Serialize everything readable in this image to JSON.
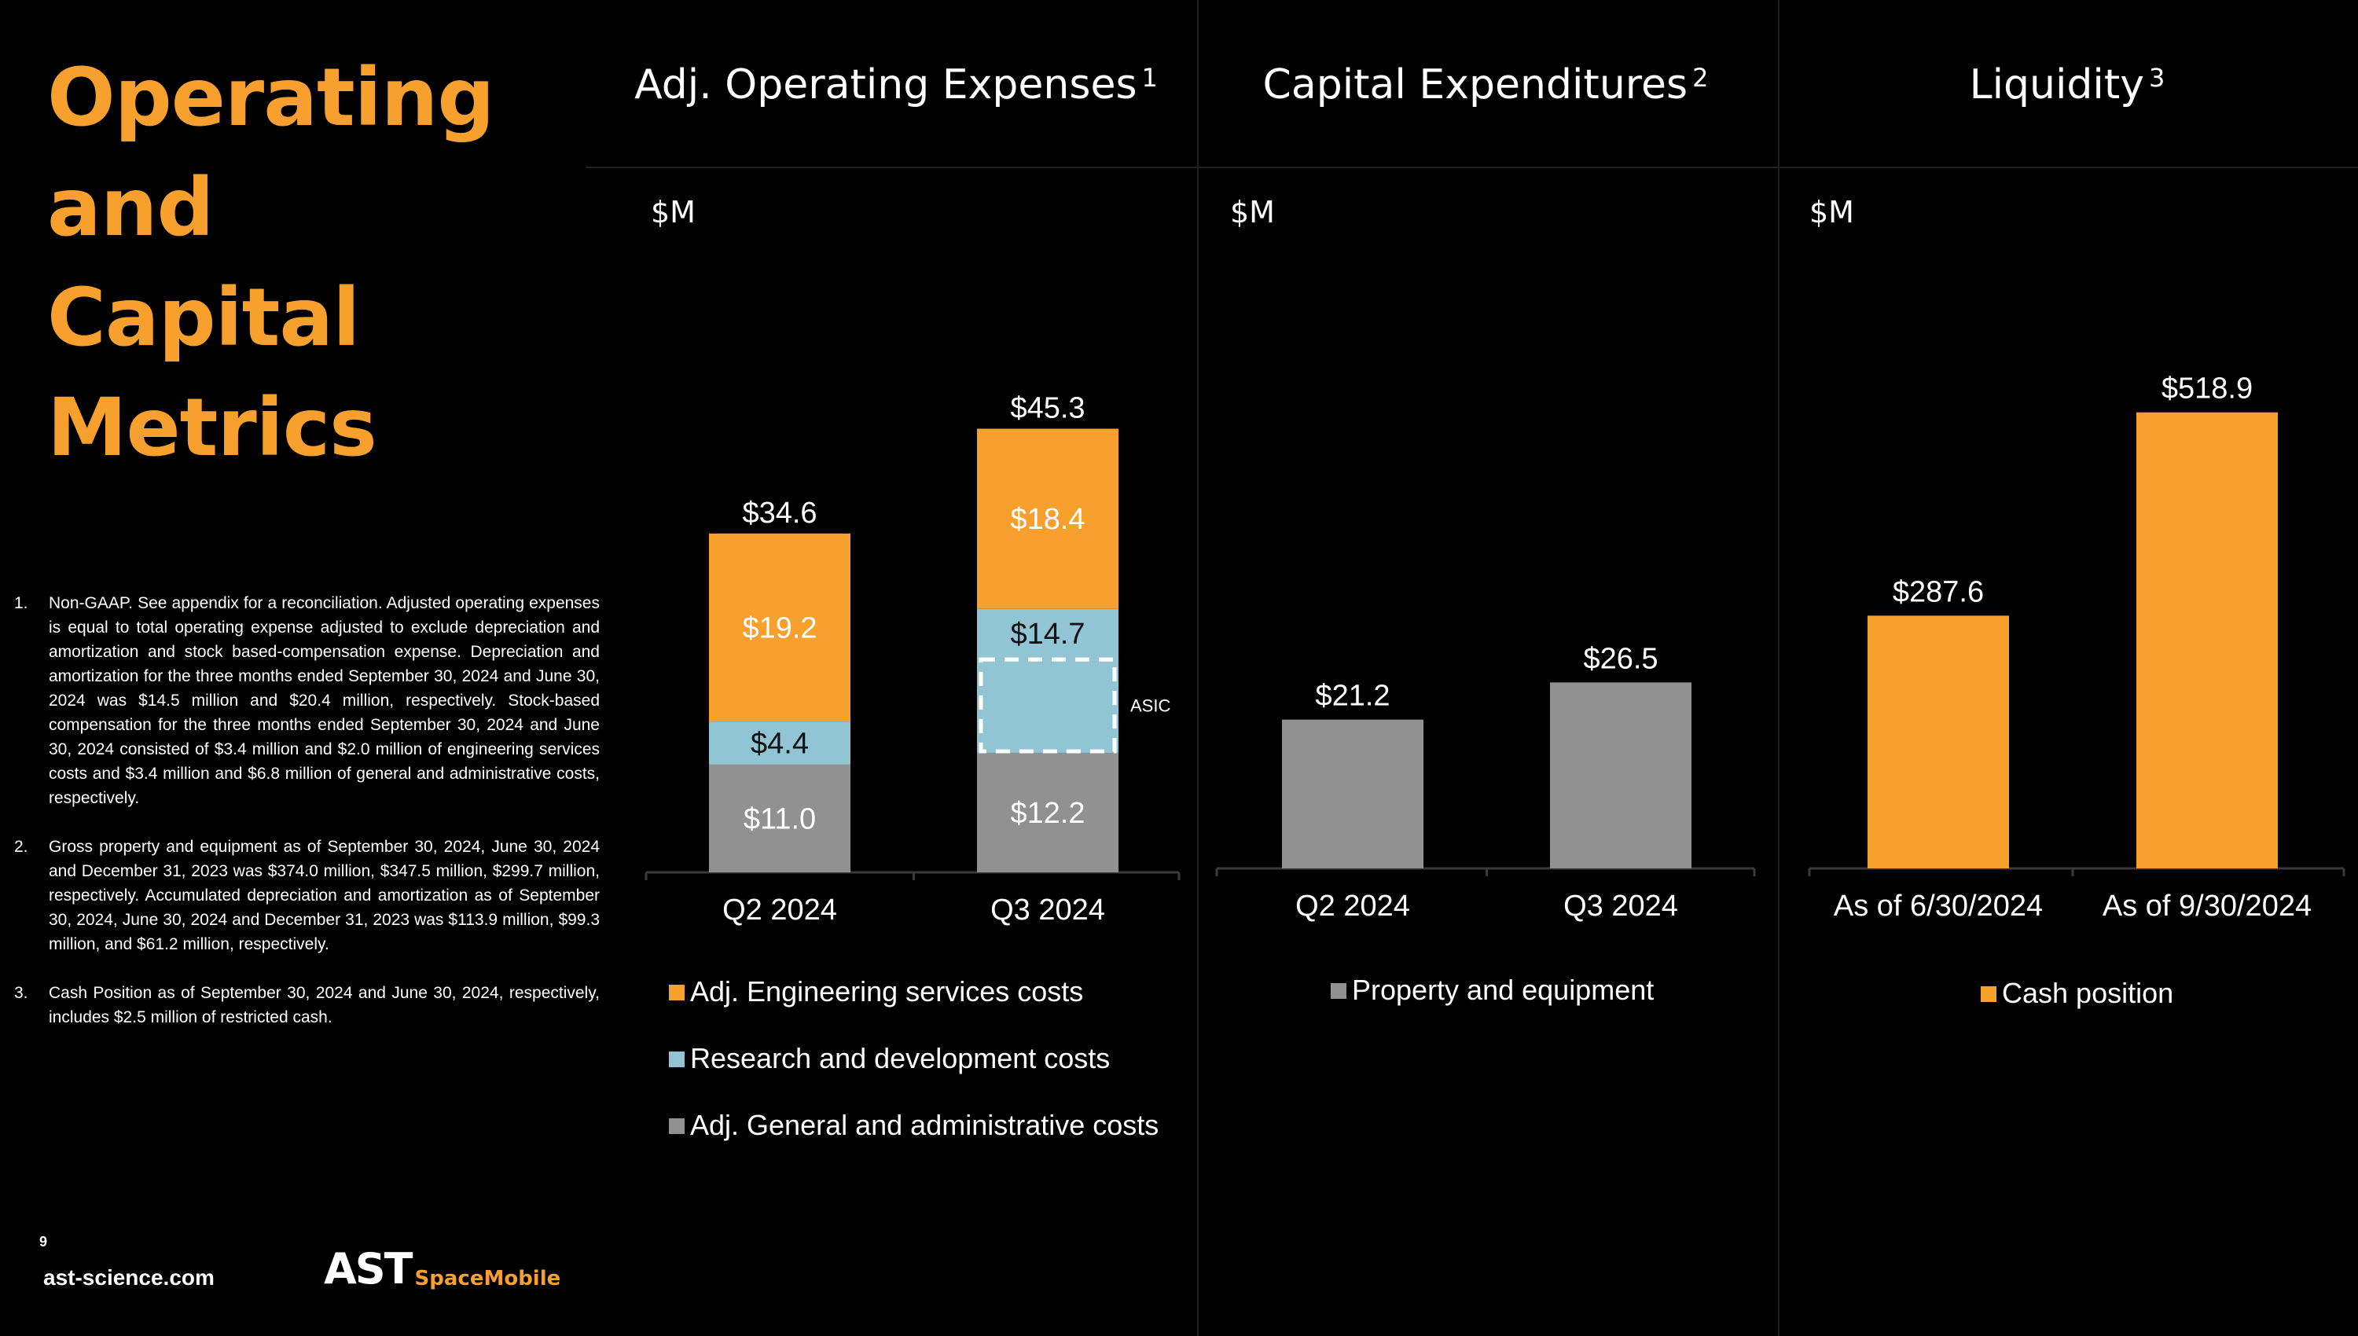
{
  "page": {
    "title_line1": "Operating and",
    "title_line2": "Capital Metrics",
    "page_number": "9",
    "website": "ast-science.com",
    "logo_main": "AST",
    "logo_sub": "SpaceMobile"
  },
  "colors": {
    "orange": "#F7A02E",
    "blue": "#92C5D4",
    "gray": "#919191",
    "axis": "#3a3a3a"
  },
  "footnotes": [
    {
      "num": "1.",
      "text": "Non-GAAP. See appendix for a reconciliation. Adjusted operating expenses is equal to total operating expense adjusted to exclude depreciation and amortization and stock based-compensation expense. Depreciation and amortization for the three months ended September 30, 2024 and June 30, 2024 was $14.5 million and $20.4 million, respectively. Stock-based compensation for the three months ended September 30, 2024 and June 30, 2024 consisted of $3.4 million and $2.0 million of engineering services costs and $3.4 million and $6.8 million of general and administrative costs, respectively."
    },
    {
      "num": "2.",
      "text": "Gross property and equipment as of September 30, 2024, June 30, 2024 and December 31, 2023 was $374.0 million, $347.5 million, $299.7 million, respectively. Accumulated depreciation and amortization as of September 30, 2024, June 30, 2024 and December 31, 2023 was $113.9 million, $99.3 million, and $61.2 million, respectively."
    },
    {
      "num": "3.",
      "text": "Cash Position as of September 30, 2024 and June 30, 2024, respectively, includes $2.5 million of restricted cash."
    }
  ],
  "panels": [
    {
      "title": "Adj. Operating Expenses",
      "sup": "1",
      "unit": "$M"
    },
    {
      "title": "Capital Expenditures",
      "sup": "2",
      "unit": "$M"
    },
    {
      "title": "Liquidity",
      "sup": "3",
      "unit": "$M"
    }
  ],
  "chart_data": [
    {
      "type": "bar",
      "stacked": true,
      "title": "Adj. Operating Expenses",
      "ylabel": "$M",
      "categories": [
        "Q2 2024",
        "Q3 2024"
      ],
      "series": [
        {
          "name": "Adj. General and administrative costs",
          "color": "#919191",
          "values": [
            11.0,
            12.2
          ],
          "labels": [
            "$11.0",
            "$12.2"
          ]
        },
        {
          "name": "Research and development costs",
          "color": "#92C5D4",
          "values": [
            4.4,
            14.7
          ],
          "labels": [
            "$4.4",
            "$14.7"
          ]
        },
        {
          "name": "Adj. Engineering services costs",
          "color": "#F7A02E",
          "values": [
            19.2,
            18.4
          ],
          "labels": [
            "$19.2",
            "$18.4"
          ]
        }
      ],
      "totals": [
        "$34.6",
        "$45.3"
      ],
      "annotation": {
        "text": "ASIC",
        "category": "Q3 2024",
        "series": "Research and development costs",
        "portion": [
          0,
          9.7
        ]
      },
      "legend": [
        "Adj. Engineering services costs",
        "Research and development costs",
        "Adj. General and administrative costs"
      ],
      "ylim": [
        0,
        52
      ]
    },
    {
      "type": "bar",
      "title": "Capital Expenditures",
      "ylabel": "$M",
      "categories": [
        "Q2 2024",
        "Q3 2024"
      ],
      "series": [
        {
          "name": "Property and equipment",
          "color": "#919191",
          "values": [
            21.2,
            26.5
          ],
          "labels": [
            "$21.2",
            "$26.5"
          ]
        }
      ],
      "legend": [
        "Property and equipment"
      ],
      "ylim": [
        0,
        72
      ]
    },
    {
      "type": "bar",
      "title": "Liquidity",
      "ylabel": "$M",
      "categories": [
        "As of 6/30/2024",
        "As of 9/30/2024"
      ],
      "series": [
        {
          "name": "Cash position",
          "color": "#F7A02E",
          "values": [
            287.6,
            518.9
          ],
          "labels": [
            "$287.6",
            "$518.9"
          ]
        }
      ],
      "legend": [
        "Cash position"
      ],
      "ylim": [
        0,
        575
      ]
    }
  ]
}
